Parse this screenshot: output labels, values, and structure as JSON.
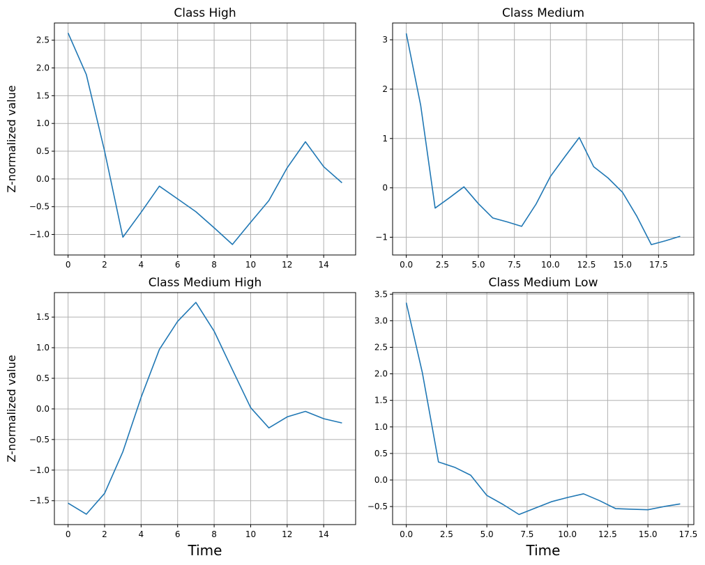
{
  "colors": {
    "line": "#1f77b4",
    "grid": "#b0b0b0",
    "frame": "#000000",
    "background": "#ffffff"
  },
  "chart_data": [
    {
      "type": "line",
      "title": "Class High",
      "xlabel": "",
      "ylabel": "Z-normalized value",
      "grid": true,
      "xlim": [
        -0.75,
        15.75
      ],
      "ylim": [
        -1.37,
        2.81
      ],
      "xticks": [
        0,
        2,
        4,
        6,
        8,
        10,
        12,
        14
      ],
      "xtick_labels": [
        "0",
        "2",
        "4",
        "6",
        "8",
        "10",
        "12",
        "14"
      ],
      "yticks": [
        -1.0,
        -0.5,
        0.0,
        0.5,
        1.0,
        1.5,
        2.0,
        2.5
      ],
      "ytick_labels": [
        "−1.0",
        "−0.5",
        "0.0",
        "0.5",
        "1.0",
        "1.5",
        "2.0",
        "2.5"
      ],
      "x": [
        0,
        1,
        2,
        3,
        4,
        5,
        6,
        7,
        8,
        9,
        10,
        11,
        12,
        13,
        14,
        15
      ],
      "y": [
        2.63,
        1.88,
        0.5,
        -1.05,
        -0.6,
        -0.13,
        -0.36,
        -0.59,
        -0.88,
        -1.18,
        -0.78,
        -0.39,
        0.2,
        0.67,
        0.22,
        -0.07
      ]
    },
    {
      "type": "line",
      "title": "Class Medium",
      "xlabel": "",
      "ylabel": "",
      "grid": true,
      "xlim": [
        -0.95,
        19.95
      ],
      "ylim": [
        -1.36,
        3.34
      ],
      "xticks": [
        0,
        2.5,
        5,
        7.5,
        10,
        12.5,
        15,
        17.5
      ],
      "xtick_labels": [
        "0.0",
        "2.5",
        "5.0",
        "7.5",
        "10.0",
        "12.5",
        "15.0",
        "17.5"
      ],
      "yticks": [
        -1,
        0,
        1,
        2,
        3
      ],
      "ytick_labels": [
        "−1",
        "0",
        "1",
        "2",
        "3"
      ],
      "x": [
        0,
        1,
        2,
        3,
        4,
        5,
        6,
        7,
        8,
        9,
        10,
        11,
        12,
        13,
        14,
        15,
        16,
        17,
        18,
        19
      ],
      "y": [
        3.13,
        1.67,
        -0.41,
        -0.2,
        0.02,
        -0.32,
        -0.61,
        -0.69,
        -0.78,
        -0.33,
        0.23,
        0.63,
        1.02,
        0.43,
        0.2,
        -0.09,
        -0.58,
        -1.15,
        -1.07,
        -0.98
      ]
    },
    {
      "type": "line",
      "title": "Class Medium High",
      "xlabel": "Time",
      "ylabel": "Z-normalized value",
      "grid": true,
      "xlim": [
        -0.75,
        15.75
      ],
      "ylim": [
        -1.89,
        1.9
      ],
      "xticks": [
        0,
        2,
        4,
        6,
        8,
        10,
        12,
        14
      ],
      "xtick_labels": [
        "0",
        "2",
        "4",
        "6",
        "8",
        "10",
        "12",
        "14"
      ],
      "yticks": [
        -1.5,
        -1.0,
        -0.5,
        0.0,
        0.5,
        1.0,
        1.5
      ],
      "ytick_labels": [
        "−1.5",
        "−1.0",
        "−0.5",
        "0.0",
        "0.5",
        "1.0",
        "1.5"
      ],
      "x": [
        0,
        1,
        2,
        3,
        4,
        5,
        6,
        7,
        8,
        9,
        10,
        11,
        12,
        13,
        14,
        15
      ],
      "y": [
        -1.54,
        -1.72,
        -1.38,
        -0.7,
        0.19,
        0.97,
        1.43,
        1.74,
        1.27,
        0.64,
        0.02,
        -0.31,
        -0.13,
        -0.04,
        -0.16,
        -0.23
      ]
    },
    {
      "type": "line",
      "title": "Class Medium Low",
      "xlabel": "Time",
      "ylabel": "",
      "grid": true,
      "xlim": [
        -0.85,
        17.85
      ],
      "ylim": [
        -0.84,
        3.53
      ],
      "xticks": [
        0,
        2.5,
        5,
        7.5,
        10,
        12.5,
        15,
        17.5
      ],
      "xtick_labels": [
        "0.0",
        "2.5",
        "5.0",
        "7.5",
        "10.0",
        "12.5",
        "15.0",
        "17.5"
      ],
      "yticks": [
        -0.5,
        0.0,
        0.5,
        1.0,
        1.5,
        2.0,
        2.5,
        3.0,
        3.5
      ],
      "ytick_labels": [
        "−0.5",
        "0.0",
        "0.5",
        "1.0",
        "1.5",
        "2.0",
        "2.5",
        "3.0",
        "3.5"
      ],
      "x": [
        0,
        1,
        2,
        3,
        4,
        5,
        6,
        7,
        8,
        9,
        10,
        11,
        12,
        13,
        14,
        15,
        16,
        17
      ],
      "y": [
        3.34,
        2.02,
        0.34,
        0.24,
        0.09,
        -0.29,
        -0.46,
        -0.65,
        -0.53,
        -0.41,
        -0.33,
        -0.26,
        -0.39,
        -0.54,
        -0.55,
        -0.56,
        -0.5,
        -0.45
      ]
    }
  ]
}
